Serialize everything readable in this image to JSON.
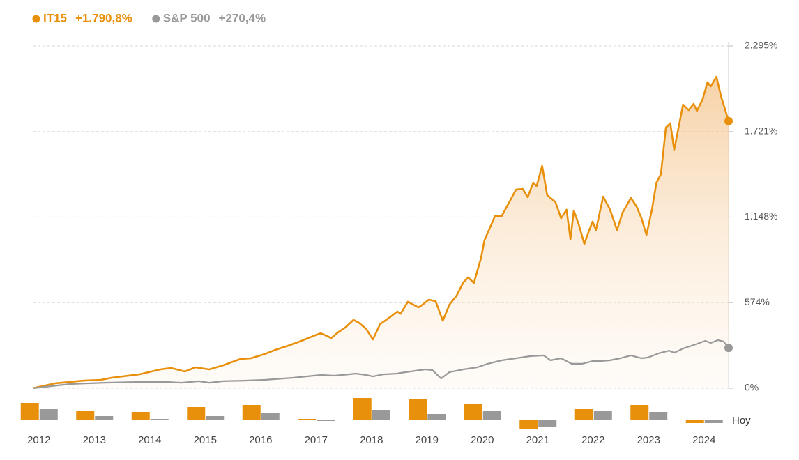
{
  "chart_data": [
    {
      "type": "line",
      "xlim": [
        2012,
        2024.54
      ],
      "ylim": [
        0,
        2295
      ],
      "yticks": [
        {
          "value": 0,
          "label": "0%"
        },
        {
          "value": 574,
          "label": "574%"
        },
        {
          "value": 1148,
          "label": "1.148%"
        },
        {
          "value": 1721,
          "label": "1.721%"
        },
        {
          "value": 2295,
          "label": "2.295%"
        }
      ],
      "grid": true,
      "series": [
        {
          "name": "IT15",
          "legend_value": "+1.790,8%",
          "color": "#e8900c",
          "area": true,
          "x": [
            2012.0,
            2012.41,
            2012.92,
            2013.23,
            2013.42,
            2013.92,
            2014.3,
            2014.49,
            2014.74,
            2014.93,
            2015.18,
            2015.43,
            2015.74,
            2015.93,
            2016.18,
            2016.37,
            2016.56,
            2016.81,
            2017.06,
            2017.19,
            2017.38,
            2017.5,
            2017.63,
            2017.78,
            2017.88,
            2018.01,
            2018.13,
            2018.26,
            2018.44,
            2018.57,
            2018.63,
            2018.76,
            2018.95,
            2019.01,
            2019.14,
            2019.26,
            2019.39,
            2019.51,
            2019.64,
            2019.76,
            2019.85,
            2019.95,
            2020.08,
            2020.14,
            2020.33,
            2020.45,
            2020.71,
            2020.83,
            2020.92,
            2021.02,
            2021.08,
            2021.18,
            2021.27,
            2021.42,
            2021.52,
            2021.62,
            2021.69,
            2021.75,
            2021.84,
            2021.94,
            2022.03,
            2022.09,
            2022.15,
            2022.28,
            2022.4,
            2022.53,
            2022.63,
            2022.78,
            2022.88,
            2022.97,
            2023.06,
            2023.16,
            2023.24,
            2023.32,
            2023.41,
            2023.49,
            2023.56,
            2023.66,
            2023.72,
            2023.82,
            2023.91,
            2023.97,
            2024.07,
            2024.16,
            2024.22,
            2024.32,
            2024.41,
            2024.47,
            2024.54
          ],
          "values": [
            0,
            33,
            51,
            56,
            70,
            93,
            126,
            136,
            112,
            140,
            126,
            154,
            196,
            201,
            229,
            257,
            280,
            313,
            351,
            369,
            337,
            374,
            407,
            458,
            439,
            397,
            327,
            430,
            477,
            514,
            500,
            580,
            542,
            556,
            594,
            584,
            453,
            561,
            622,
            710,
            743,
            706,
            874,
            991,
            1154,
            1154,
            1332,
            1337,
            1281,
            1379,
            1355,
            1491,
            1295,
            1248,
            1140,
            1197,
            1000,
            1192,
            1098,
            968,
            1061,
            1117,
            1061,
            1285,
            1201,
            1061,
            1178,
            1276,
            1220,
            1140,
            1028,
            1201,
            1379,
            1435,
            1748,
            1776,
            1599,
            1790,
            1902,
            1865,
            1907,
            1860,
            1935,
            2052,
            2024,
            2089,
            1949,
            1879,
            1790.8
          ]
        },
        {
          "name": "S&P 500",
          "legend_value": "+270,4%",
          "color": "#999999",
          "area": false,
          "x": [
            2012.0,
            2012.67,
            2013.29,
            2013.92,
            2014.42,
            2014.68,
            2014.99,
            2015.18,
            2015.43,
            2015.81,
            2016.18,
            2016.69,
            2017.19,
            2017.44,
            2017.69,
            2017.82,
            2018.01,
            2018.13,
            2018.32,
            2018.57,
            2018.63,
            2019.07,
            2019.2,
            2019.36,
            2019.51,
            2019.76,
            2020.01,
            2020.2,
            2020.45,
            2020.71,
            2020.96,
            2021.21,
            2021.33,
            2021.52,
            2021.71,
            2021.9,
            2022.09,
            2022.21,
            2022.4,
            2022.59,
            2022.78,
            2022.97,
            2023.09,
            2023.28,
            2023.47,
            2023.56,
            2023.72,
            2023.91,
            2024.12,
            2024.22,
            2024.35,
            2024.45,
            2024.54
          ],
          "values": [
            0,
            28,
            37,
            42,
            42,
            37,
            47,
            37,
            47,
            51,
            56,
            70,
            89,
            84,
            93,
            98,
            89,
            79,
            93,
            98,
            103,
            126,
            122,
            65,
            108,
            126,
            140,
            164,
            187,
            201,
            215,
            220,
            187,
            201,
            164,
            164,
            182,
            182,
            187,
            201,
            220,
            201,
            206,
            234,
            252,
            238,
            266,
            290,
            318,
            304,
            323,
            313,
            270.4
          ]
        }
      ]
    },
    {
      "type": "bar",
      "categories": [
        "2012",
        "2013",
        "2014",
        "2015",
        "2016",
        "2017",
        "2018",
        "2019",
        "2020",
        "2021",
        "2022",
        "2023",
        "2024"
      ],
      "annotation": "Hoy",
      "ylim": [
        -18,
        36
      ],
      "series": [
        {
          "color": "#e8900c",
          "values": [
            24,
            12,
            11,
            18,
            21,
            1,
            31,
            29,
            22,
            -14,
            15,
            21,
            -5
          ]
        },
        {
          "color": "#999999",
          "values": [
            15,
            5,
            1,
            5,
            9,
            -2,
            14,
            8,
            13,
            -10,
            12,
            11,
            -5
          ]
        }
      ]
    }
  ]
}
